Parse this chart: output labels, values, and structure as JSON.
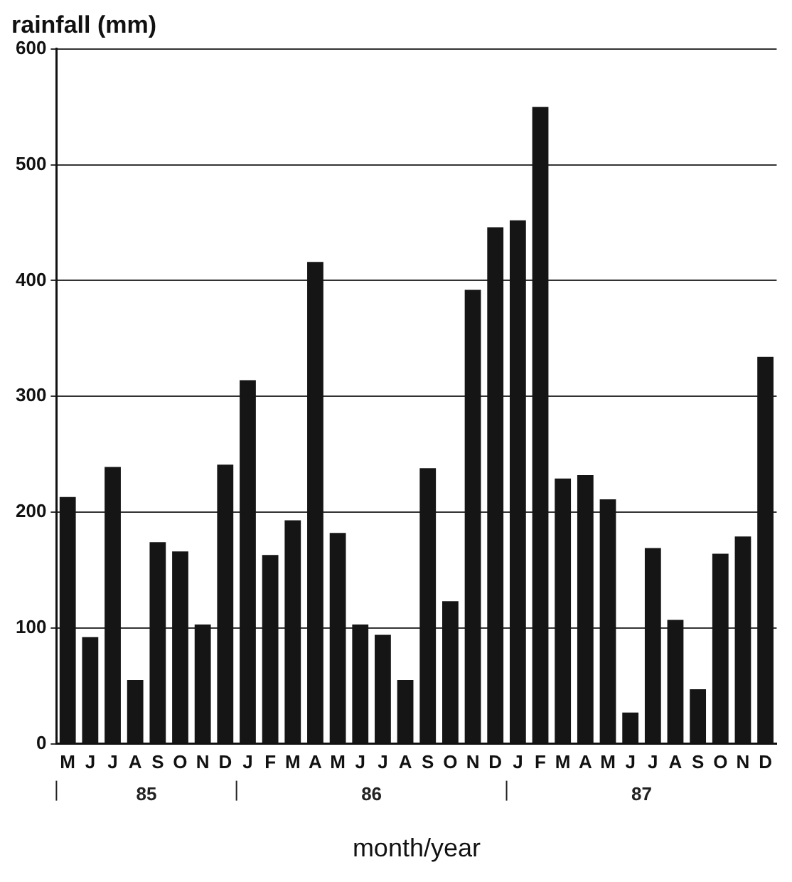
{
  "chart_data": {
    "type": "bar",
    "ylabel": "rainfall (mm)",
    "xlabel": "month/year",
    "categories": [
      "M",
      "J",
      "J",
      "A",
      "S",
      "O",
      "N",
      "D",
      "J",
      "F",
      "M",
      "A",
      "M",
      "J",
      "J",
      "A",
      "S",
      "O",
      "N",
      "D",
      "J",
      "F",
      "M",
      "A",
      "M",
      "J",
      "J",
      "A",
      "S",
      "O",
      "N",
      "D"
    ],
    "values": [
      213,
      92,
      239,
      55,
      174,
      166,
      103,
      241,
      314,
      163,
      193,
      416,
      182,
      103,
      94,
      55,
      238,
      123,
      392,
      446,
      452,
      550,
      229,
      232,
      211,
      27,
      169,
      107,
      47,
      164,
      179,
      334
    ],
    "color": "#151515",
    "ylim": [
      0,
      600
    ],
    "yticks": [
      0,
      100,
      200,
      300,
      400,
      500,
      600
    ],
    "grid": "y",
    "annotations": [
      "85",
      "86",
      "87"
    ]
  }
}
